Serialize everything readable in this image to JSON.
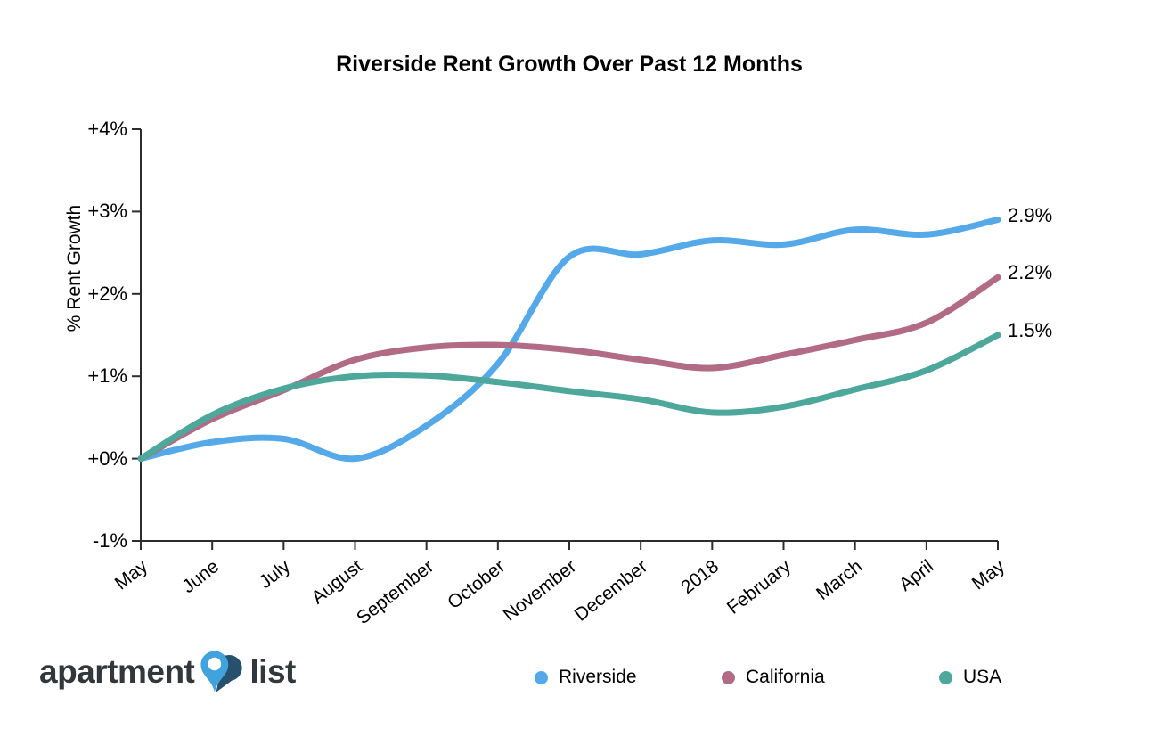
{
  "title": "Riverside Rent Growth Over Past 12 Months",
  "y_axis_label": "% Rent Growth",
  "chart_data": {
    "type": "line",
    "categories": [
      "May",
      "June",
      "July",
      "August",
      "September",
      "October",
      "November",
      "December",
      "2018",
      "February",
      "March",
      "April",
      "May"
    ],
    "series": [
      {
        "name": "Riverside",
        "color": "#55A9E8",
        "end_label": "2.9%",
        "values": [
          0,
          0.2,
          0.24,
          0.0,
          0.4,
          1.15,
          2.45,
          2.48,
          2.65,
          2.6,
          2.78,
          2.72,
          2.9
        ]
      },
      {
        "name": "California",
        "color": "#B16B84",
        "end_label": "2.2%",
        "values": [
          0,
          0.48,
          0.83,
          1.2,
          1.35,
          1.38,
          1.32,
          1.2,
          1.1,
          1.26,
          1.44,
          1.65,
          2.2
        ]
      },
      {
        "name": "USA",
        "color": "#4EA79B",
        "end_label": "1.5%",
        "values": [
          0,
          0.53,
          0.85,
          1.0,
          1.01,
          0.93,
          0.82,
          0.72,
          0.56,
          0.63,
          0.84,
          1.07,
          1.5
        ]
      }
    ],
    "y_ticks": [
      "+4%",
      "+3%",
      "+2%",
      "+1%",
      "+0%",
      "-1%"
    ],
    "y_tick_values": [
      4,
      3,
      2,
      1,
      0,
      -1
    ],
    "ylim": [
      -1,
      4
    ],
    "grid": false,
    "legend_position": "bottom",
    "axis_color": "#2d2d2d",
    "line_width": 7
  },
  "logo": {
    "part1": "apartment",
    "part2": "list",
    "pin_light": "#41a3dd",
    "pin_dark": "#26506b",
    "text_color": "#32373c"
  }
}
